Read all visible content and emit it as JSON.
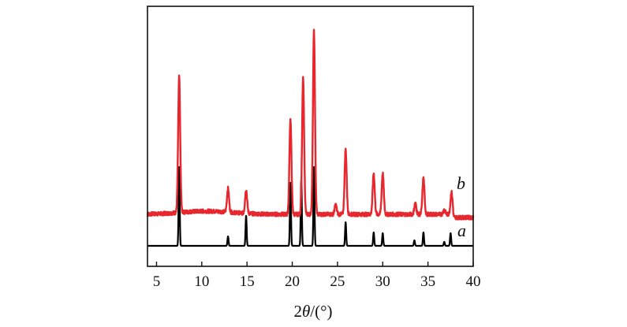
{
  "chart_data": {
    "type": "line",
    "title": "",
    "xlabel_prefix": "2",
    "xlabel_theta": "θ",
    "xlabel_suffix": "/(°)",
    "ylabel": "",
    "xlim": [
      4,
      40
    ],
    "xticks": [
      5,
      10,
      15,
      20,
      25,
      30,
      35,
      40
    ],
    "grid": false,
    "legend": "none",
    "series": [
      {
        "label": "a",
        "color": "#000000",
        "baseline": 0,
        "peaks": [
          {
            "x": 7.5,
            "h": 100
          },
          {
            "x": 12.9,
            "h": 12
          },
          {
            "x": 14.9,
            "h": 38
          },
          {
            "x": 19.8,
            "h": 80
          },
          {
            "x": 21.0,
            "h": 84
          },
          {
            "x": 22.4,
            "h": 100
          },
          {
            "x": 25.9,
            "h": 30
          },
          {
            "x": 29.0,
            "h": 17
          },
          {
            "x": 30.0,
            "h": 16
          },
          {
            "x": 33.5,
            "h": 7
          },
          {
            "x": 34.5,
            "h": 17
          },
          {
            "x": 36.8,
            "h": 5
          },
          {
            "x": 37.5,
            "h": 16
          }
        ]
      },
      {
        "label": "b",
        "color": "#e8262d",
        "baseline": 40,
        "peaks": [
          {
            "x": 7.5,
            "h": 172
          },
          {
            "x": 12.9,
            "h": 30
          },
          {
            "x": 14.9,
            "h": 30
          },
          {
            "x": 19.8,
            "h": 120
          },
          {
            "x": 21.2,
            "h": 172
          },
          {
            "x": 22.4,
            "h": 232
          },
          {
            "x": 24.8,
            "h": 12
          },
          {
            "x": 25.9,
            "h": 82
          },
          {
            "x": 29.0,
            "h": 52
          },
          {
            "x": 30.0,
            "h": 52
          },
          {
            "x": 33.6,
            "h": 14
          },
          {
            "x": 34.5,
            "h": 46
          },
          {
            "x": 36.8,
            "h": 6
          },
          {
            "x": 37.6,
            "h": 28
          }
        ]
      }
    ]
  }
}
